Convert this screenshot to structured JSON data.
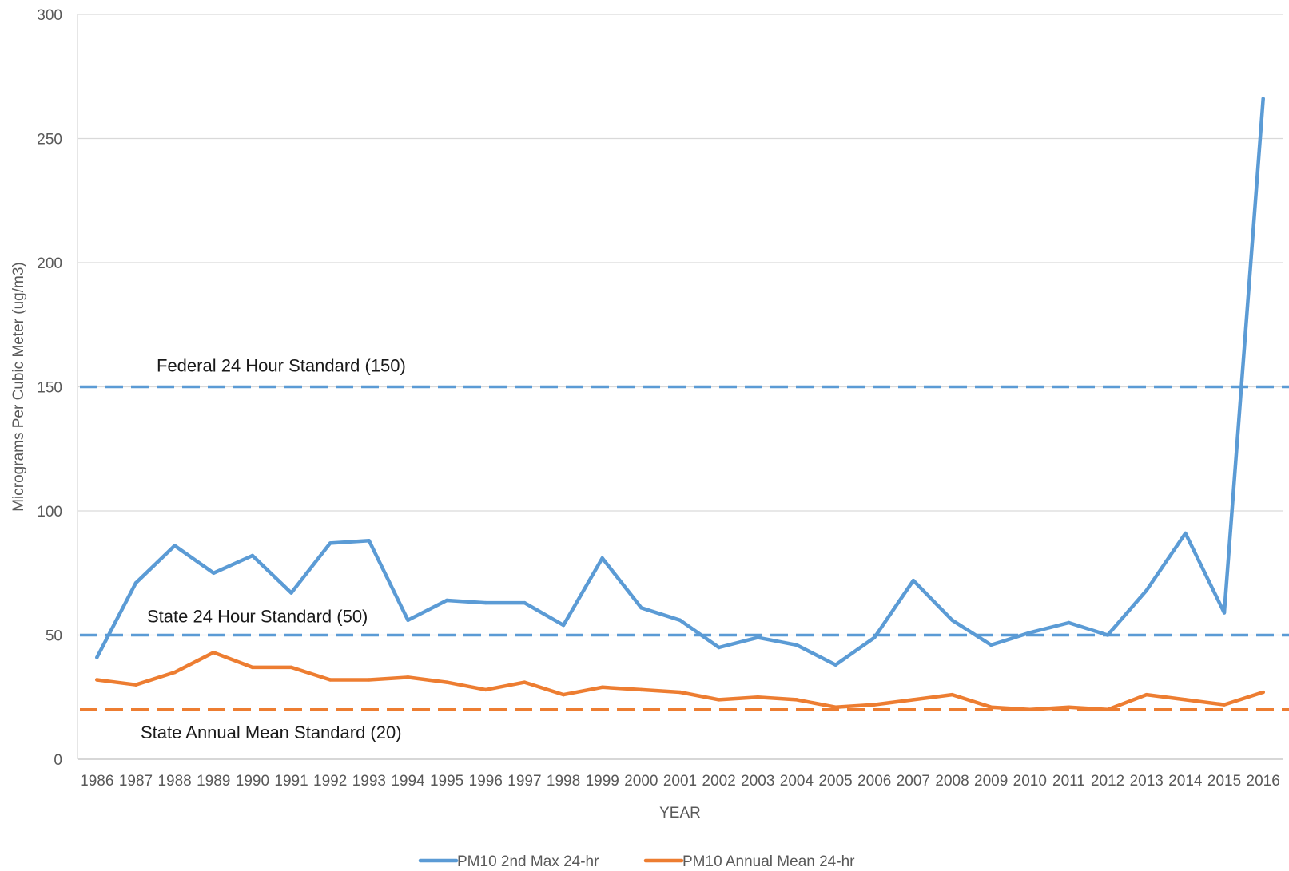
{
  "chart_data": {
    "type": "line",
    "title": "",
    "xlabel": "YEAR",
    "ylabel": "Micrograms Per Cubic Meter (ug/m3)",
    "ylim": [
      0,
      300
    ],
    "yticks": [
      0,
      50,
      100,
      150,
      200,
      250,
      300
    ],
    "grid": true,
    "legend_position": "bottom",
    "categories": [
      "1986",
      "1987",
      "1988",
      "1989",
      "1990",
      "1991",
      "1992",
      "1993",
      "1994",
      "1995",
      "1996",
      "1997",
      "1998",
      "1999",
      "2000",
      "2001",
      "2002",
      "2003",
      "2004",
      "2005",
      "2006",
      "2007",
      "2008",
      "2009",
      "2010",
      "2011",
      "2012",
      "2013",
      "2014",
      "2015",
      "2016"
    ],
    "series": [
      {
        "name": "PM10 2nd Max 24-hr",
        "color": "#5B9BD5",
        "values": [
          41,
          71,
          86,
          75,
          82,
          67,
          87,
          88,
          56,
          64,
          63,
          63,
          54,
          81,
          61,
          56,
          45,
          49,
          46,
          38,
          49,
          72,
          56,
          46,
          51,
          55,
          50,
          68,
          91,
          59,
          266
        ]
      },
      {
        "name": "PM10 Annual Mean 24-hr",
        "color": "#ED7D31",
        "values": [
          32,
          30,
          35,
          43,
          37,
          37,
          32,
          32,
          33,
          31,
          28,
          31,
          26,
          29,
          28,
          27,
          24,
          25,
          24,
          21,
          22,
          24,
          26,
          21,
          20,
          21,
          20,
          26,
          24,
          22,
          27
        ]
      }
    ],
    "reference_lines": [
      {
        "label": "Federal 24 Hour Standard (150)",
        "value": 150,
        "color": "#5B9BD5"
      },
      {
        "label": "State 24 Hour Standard (50)",
        "value": 50,
        "color": "#5B9BD5"
      },
      {
        "label": "State Annual Mean Standard (20)",
        "value": 20,
        "color": "#ED7D31"
      }
    ]
  }
}
